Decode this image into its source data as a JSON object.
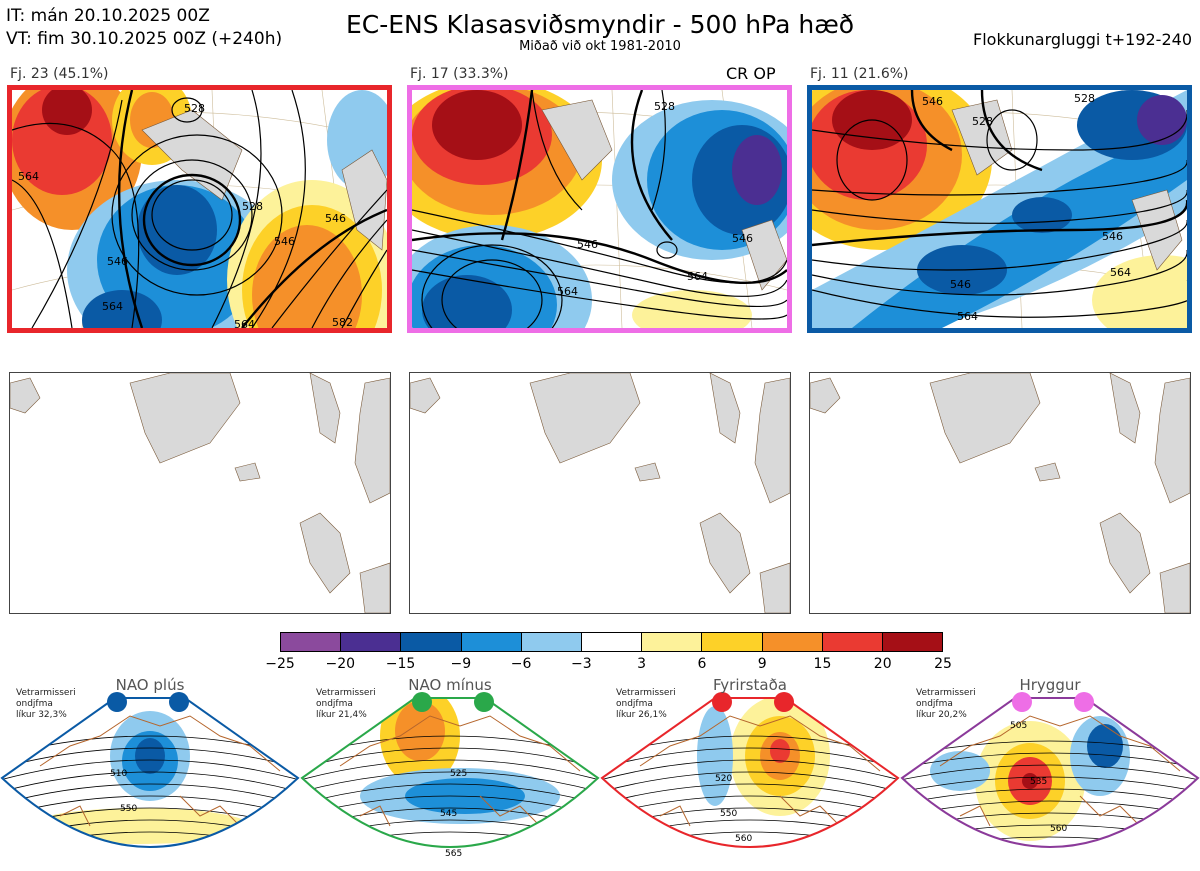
{
  "header": {
    "it_line": "IT: mán 20.10.2025 00Z",
    "vt_line": "VT: fim 30.10.2025 00Z  (+240h)",
    "title": "EC-ENS Klasasviðsmyndir - 500 hPa hæð",
    "subtitle": "Miðað við okt 1981-2010",
    "window": "Flokkunargluggi t+192-240"
  },
  "clusters": [
    {
      "label": "Fj. 23 (45.1%)",
      "members": 23,
      "percent": 45.1,
      "border_color": "#e8262b",
      "contours": [
        "564",
        "528",
        "546",
        "564",
        "546",
        "528",
        "546",
        "564",
        "582"
      ]
    },
    {
      "label": "Fj. 17 (33.3%)",
      "members": 17,
      "percent": 33.3,
      "border_color": "#ee6ee6",
      "extra_label": "CR OP",
      "contours": [
        "546",
        "528",
        "546",
        "564",
        "564"
      ]
    },
    {
      "label": "Fj. 11 (21.6%)",
      "members": 11,
      "percent": 21.6,
      "border_color": "#0a5aa5",
      "contours": [
        "546",
        "528",
        "528",
        "546",
        "546",
        "564",
        "564"
      ]
    }
  ],
  "chart_data": {
    "type": "heatmap",
    "title": "EC-ENS Klasasviðsmyndir - 500 hPa hæð",
    "colorbar": {
      "ticks": [
        "−25",
        "−20",
        "−15",
        "−9",
        "−6",
        "−3",
        "3",
        "6",
        "9",
        "15",
        "20",
        "25"
      ],
      "tick_values": [
        -25,
        -20,
        -15,
        -9,
        -6,
        -3,
        3,
        6,
        9,
        15,
        20,
        25
      ],
      "colors": [
        "#8b4a9d",
        "#4b2f92",
        "#0a5aa5",
        "#1d8fd8",
        "#8fcaee",
        "#ffffff",
        "#fdf29a",
        "#fdd128",
        "#f59029",
        "#ea3a32",
        "#a50f16"
      ]
    }
  },
  "regimes": [
    {
      "name": "NAO plús",
      "note": [
        "Vetrarmisseri",
        "ondjfma",
        "líkur 32,3%"
      ],
      "likelihood": 32.3,
      "color": "#0a5aa5",
      "dot_color": "#0a5aa5",
      "contours": [
        "510",
        "550"
      ]
    },
    {
      "name": "NAO mínus",
      "note": [
        "Vetrarmisseri",
        "ondjfma",
        "líkur 21,4%"
      ],
      "likelihood": 21.4,
      "color": "#2aa84a",
      "dot_color": "#2aa84a",
      "contours": [
        "525",
        "545",
        "565"
      ]
    },
    {
      "name": "Fyrirstaða",
      "note": [
        "Vetrarmisseri",
        "ondjfma",
        "líkur 26,1%"
      ],
      "likelihood": 26.1,
      "color": "#e8262b",
      "dot_color": "#e8262b",
      "contours": [
        "520",
        "550",
        "560"
      ]
    },
    {
      "name": "Hryggur",
      "note": [
        "Vetrarmisseri",
        "ondjfma",
        "líkur 20,2%"
      ],
      "likelihood": 20.2,
      "color": "#8b3a9a",
      "dot_color": "#ee6ee6",
      "contours": [
        "505",
        "535",
        "560"
      ]
    }
  ]
}
